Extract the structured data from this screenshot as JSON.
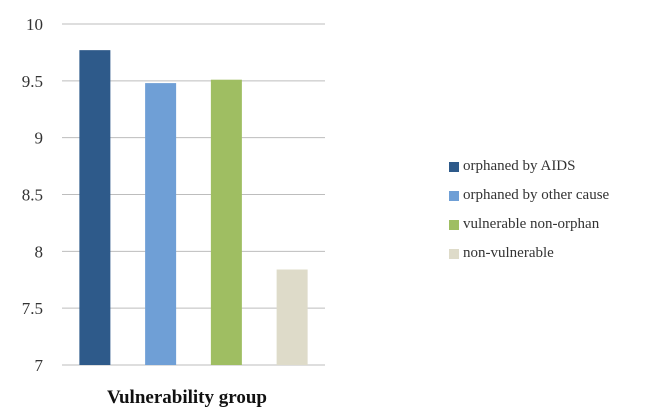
{
  "chart_data": {
    "type": "bar",
    "title": "",
    "xlabel": "Vulnerability group",
    "ylabel": "",
    "ylim": [
      7,
      10
    ],
    "yticks": [
      "7",
      "7.5",
      "8",
      "8.5",
      "9",
      "9.5",
      "10"
    ],
    "grid": true,
    "legend_position": "right",
    "categories": [
      "orphaned by AIDS",
      "orphaned by other cause",
      "vulnerable non-orphan",
      "non-vulnerable"
    ],
    "values": [
      9.77,
      9.48,
      9.51,
      7.84
    ],
    "colors": [
      "#2e5a8a",
      "#6f9fd6",
      "#9fbe62",
      "#dedbc9"
    ]
  }
}
